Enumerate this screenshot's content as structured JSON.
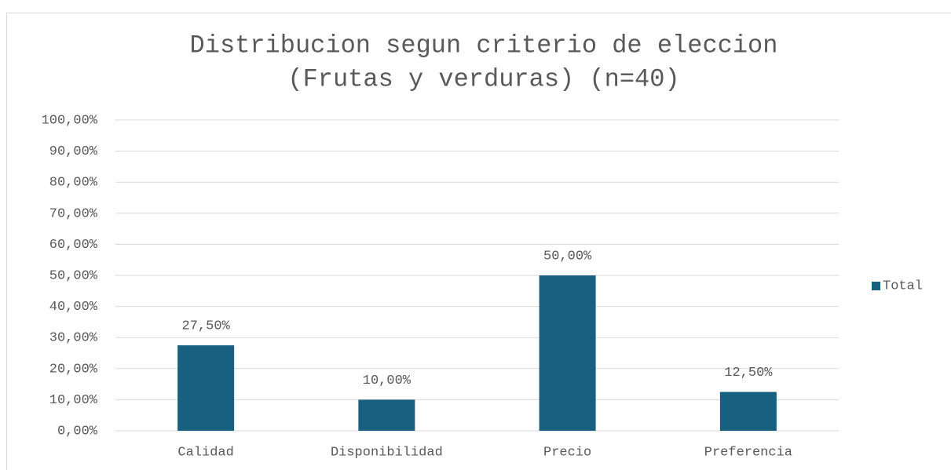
{
  "chart_data": {
    "type": "bar",
    "title": [
      "Distribucion segun criterio de eleccion",
      "(Frutas y verduras) (n=40)"
    ],
    "categories": [
      "Calidad",
      "Disponibilidad",
      "Precio",
      "Preferencia"
    ],
    "series": [
      {
        "name": "Total",
        "color": "#17607f",
        "values": [
          27.5,
          10,
          50,
          12.5
        ],
        "value_labels": [
          "27,50%",
          "10,00%",
          "50,00%",
          "12,50%"
        ]
      }
    ],
    "ylim": [
      0,
      100
    ],
    "yticks": [
      {
        "value": 0,
        "label": "0,00%"
      },
      {
        "value": 10,
        "label": "10,00%"
      },
      {
        "value": 20,
        "label": "20,00%"
      },
      {
        "value": 30,
        "label": "30,00%"
      },
      {
        "value": 40,
        "label": "40,00%"
      },
      {
        "value": 50,
        "label": "50,00%"
      },
      {
        "value": 60,
        "label": "60,00%"
      },
      {
        "value": 70,
        "label": "70,00%"
      },
      {
        "value": 80,
        "label": "80,00%"
      },
      {
        "value": 90,
        "label": "90,00%"
      },
      {
        "value": 100,
        "label": "100,00%"
      }
    ],
    "grid": true,
    "legend": "right"
  }
}
